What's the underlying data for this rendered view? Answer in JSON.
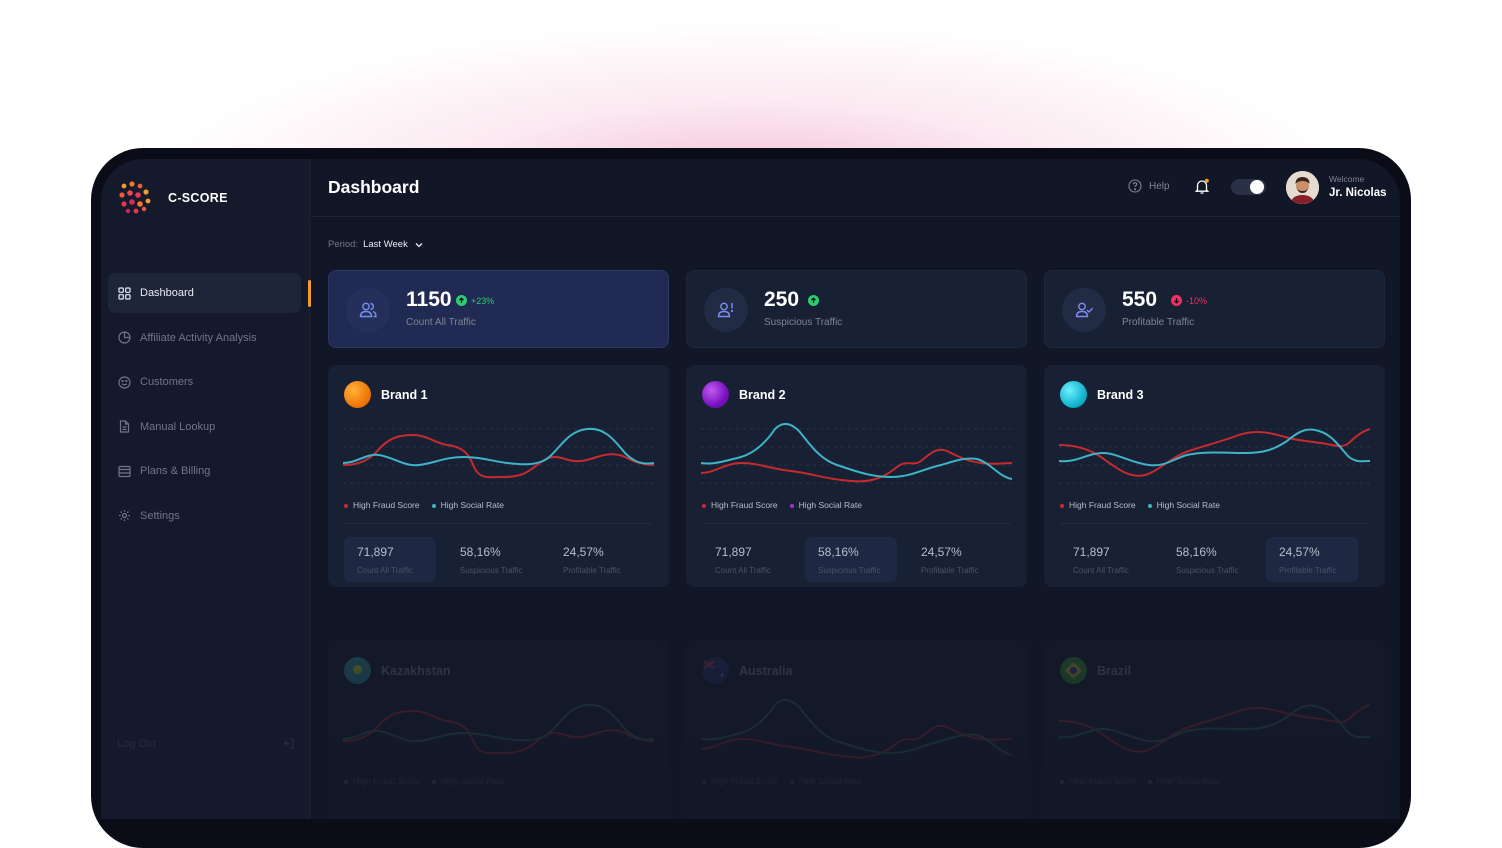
{
  "app": {
    "name": "C-SCORE"
  },
  "sidebar": {
    "items": [
      {
        "label": "Dashboard",
        "icon": "grid-icon",
        "active": true
      },
      {
        "label": "Affiliate Activity Analysis",
        "icon": "pie-chart-icon",
        "active": false
      },
      {
        "label": "Customers",
        "icon": "smile-icon",
        "active": false
      },
      {
        "label": "Manual Lookup",
        "icon": "document-icon",
        "active": false
      },
      {
        "label": "Plans & Billing",
        "icon": "billing-icon",
        "active": false
      },
      {
        "label": "Settings",
        "icon": "gear-icon",
        "active": false
      }
    ],
    "logout_label": "Log Out"
  },
  "header": {
    "title": "Dashboard",
    "help_label": "Help",
    "welcome_label": "Welcome",
    "user_name": "Jr. Nicolas"
  },
  "period": {
    "label": "Period:",
    "value": "Last Week"
  },
  "stats": [
    {
      "value": "1150",
      "change": "+23%",
      "direction": "up",
      "label": "Count All Traffic",
      "icon": "users-icon",
      "active": true
    },
    {
      "value": "250",
      "change": "",
      "direction": "up",
      "label": "Suspicious Traffic",
      "icon": "user-alert-icon",
      "active": false
    },
    {
      "value": "550",
      "change": "-10%",
      "direction": "down",
      "label": "Profitable Traffic",
      "icon": "user-check-icon",
      "active": false
    }
  ],
  "legend": {
    "fraud": "High Fraud Score",
    "social": "High Social Rate"
  },
  "colors": {
    "fraud": "#c62a2f",
    "social": "#3fb3c8",
    "up": "#2ecc71",
    "down": "#f0315f",
    "accent": "#f59a2c"
  },
  "brands": [
    {
      "name": "Brand 1",
      "legend_dots": [
        "#c62a2f",
        "#3fb3c8"
      ],
      "metrics": [
        {
          "value": "71,897",
          "label": "Count All Traffic"
        },
        {
          "value": "58,16%",
          "label": "Suspicious Traffic"
        },
        {
          "value": "24,57%",
          "label": "Profitable Traffic"
        }
      ],
      "highlight": 0
    },
    {
      "name": "Brand 2",
      "legend_dots": [
        "#c62a2f",
        "#a032c8"
      ],
      "metrics": [
        {
          "value": "71,897",
          "label": "Count All Traffic"
        },
        {
          "value": "58,16%",
          "label": "Suspicious Traffic"
        },
        {
          "value": "24,57%",
          "label": "Profitable Traffic"
        }
      ],
      "highlight": 1
    },
    {
      "name": "Brand 3",
      "legend_dots": [
        "#c62a2f",
        "#3fb3c8"
      ],
      "metrics": [
        {
          "value": "71,897",
          "label": "Count All Traffic"
        },
        {
          "value": "58,16%",
          "label": "Suspicious Traffic"
        },
        {
          "value": "24,57%",
          "label": "Profitable Traffic"
        }
      ],
      "highlight": 2
    }
  ],
  "countries": [
    {
      "name": "Kazakhstan"
    },
    {
      "name": "Australia"
    },
    {
      "name": "Brazil"
    }
  ]
}
